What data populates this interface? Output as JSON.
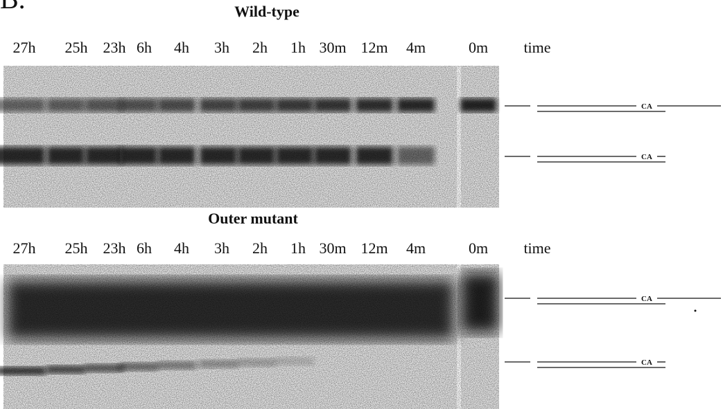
{
  "panel_label": "B.",
  "panels": [
    {
      "title": "Wild-type",
      "lanes": [
        "27h",
        "25h",
        "23h",
        "6h",
        "4h",
        "3h",
        "2h",
        "1h",
        "30m",
        "12m",
        "4m",
        "0m"
      ],
      "axis_label": "time",
      "band_labels": [
        "CA",
        "CA"
      ]
    },
    {
      "title": "Outer mutant",
      "lanes": [
        "27h",
        "25h",
        "23h",
        "6h",
        "4h",
        "3h",
        "2h",
        "1h",
        "30m",
        "12m",
        "4m",
        "0m"
      ],
      "axis_label": "time",
      "band_labels": [
        "CA",
        "CA"
      ]
    }
  ]
}
